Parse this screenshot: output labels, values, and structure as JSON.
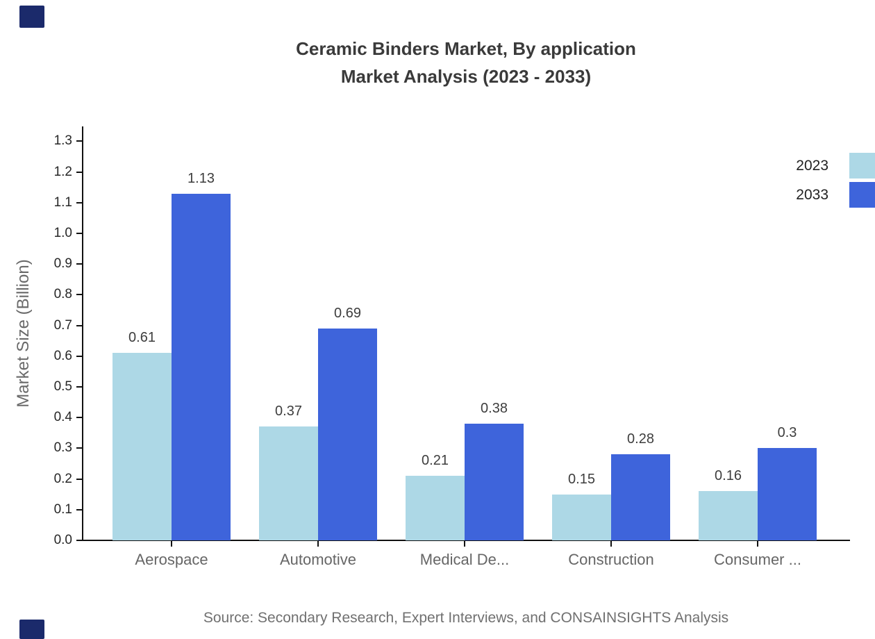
{
  "title": {
    "line1": "Ceramic Binders Market, By application",
    "line2": "Market Analysis (2023 - 2033)"
  },
  "source": "Source: Secondary Research, Expert Interviews, and CONSAINSIGHTS Analysis",
  "legend": [
    {
      "label": "2023",
      "color": "#ADD8E6"
    },
    {
      "label": "2033",
      "color": "#3E64DB"
    }
  ],
  "colors": {
    "series_2023": "#ADD8E6",
    "series_2033": "#3E64DB",
    "axis_line": "#111111",
    "title_text": "#3A3A3A",
    "category_text": "#666666",
    "tick_text": "#262626",
    "value_text": "#3D3D3D",
    "source_text": "#707070",
    "corner_mark": "#1B2A6B"
  },
  "chart_data": {
    "type": "bar",
    "title": "Ceramic Binders Market, By application Market Analysis (2023 - 2033)",
    "categories": [
      "Aerospace",
      "Automotive",
      "Medical De...",
      "Construction",
      "Consumer ..."
    ],
    "series": [
      {
        "name": "2023",
        "color": "#ADD8E6",
        "values": [
          0.61,
          0.37,
          0.21,
          0.15,
          0.16
        ]
      },
      {
        "name": "2033",
        "color": "#3E64DB",
        "values": [
          1.13,
          0.69,
          0.38,
          0.28,
          0.3
        ]
      }
    ],
    "xlabel": "",
    "ylabel": "Market Size (Billion)",
    "ylim": [
      0.0,
      1.3
    ],
    "ytick_step": 0.1,
    "grid": false,
    "legend_position": "top-right",
    "value_labels": true
  }
}
